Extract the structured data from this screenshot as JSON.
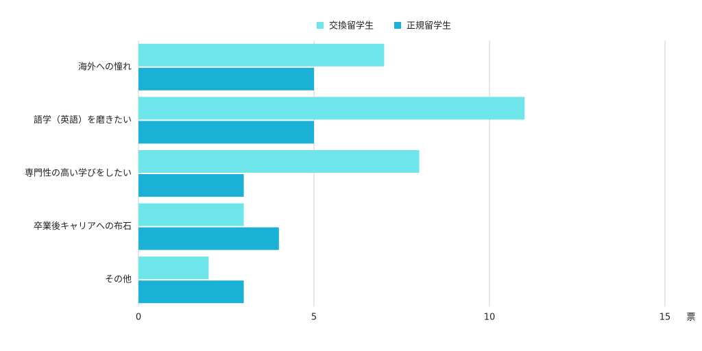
{
  "chart_data": {
    "type": "barh",
    "categories": [
      "海外への憧れ",
      "語学（英語）を磨きたい",
      "専門性の高い学びをしたい",
      "卒業後キャリアへの布石",
      "その他"
    ],
    "series": [
      {
        "name": "交換留学生",
        "color": "#6ee5e8",
        "values": [
          7,
          11,
          8,
          3,
          2
        ]
      },
      {
        "name": "正規留学生",
        "color": "#1bb0d6",
        "values": [
          5,
          5,
          3,
          4,
          3
        ]
      }
    ],
    "xlabel": "票",
    "xlim": [
      0,
      15
    ],
    "xticks": [
      0,
      5,
      10,
      15
    ],
    "grid": true,
    "legend": "top"
  }
}
